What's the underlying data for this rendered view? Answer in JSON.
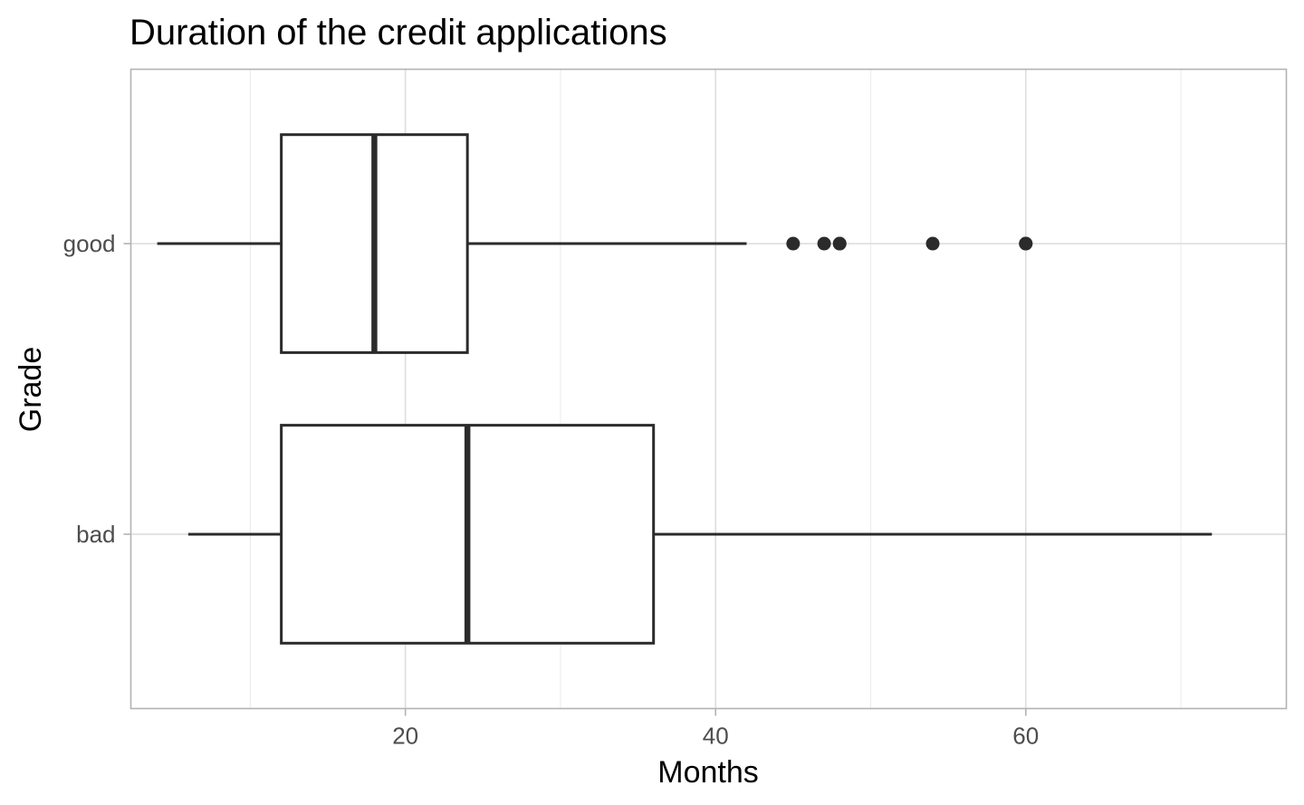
{
  "chart_data": {
    "type": "boxplot",
    "orientation": "horizontal",
    "title": "Duration of the credit applications",
    "xlabel": "Months",
    "ylabel": "Grade",
    "xlim": [
      2.3,
      76.8
    ],
    "x_ticks": [
      20,
      40,
      60
    ],
    "x_minor_ticks": [
      10,
      30,
      50,
      70
    ],
    "grid": true,
    "legend": "none",
    "categories": [
      "good",
      "bad"
    ],
    "boxes": [
      {
        "category": "good",
        "min": 4,
        "q1": 12,
        "median": 18,
        "q3": 24,
        "max": 42,
        "outliers": [
          45,
          47,
          48,
          48,
          54,
          60,
          60
        ]
      },
      {
        "category": "bad",
        "min": 6,
        "q1": 12,
        "median": 24,
        "q3": 36,
        "max": 72,
        "outliers": []
      }
    ],
    "colors": {
      "box_line": "#2b2b2b",
      "box_fill": "#ffffff",
      "grid": "#dedede",
      "border": "#b3b3b3"
    }
  }
}
